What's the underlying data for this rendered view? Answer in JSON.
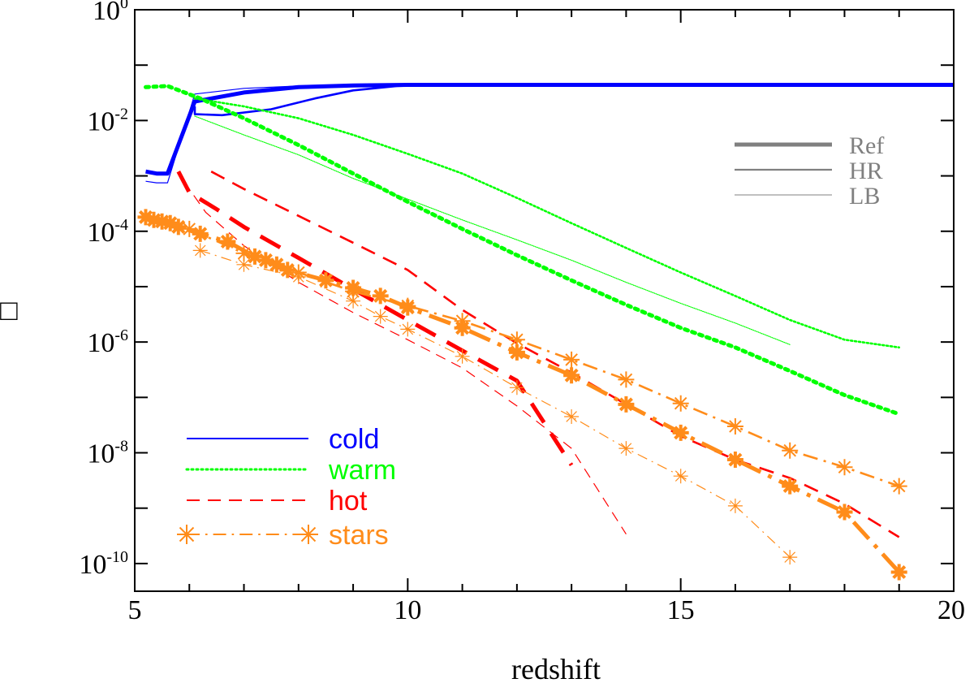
{
  "chart_data": {
    "type": "line",
    "xlabel": "redshift",
    "ylabel": "□",
    "xlim": [
      5,
      20
    ],
    "ylim_log10": [
      -10.5,
      0
    ],
    "y_scale": "log",
    "x_ticks": [
      5,
      10,
      15,
      20
    ],
    "y_ticks": [
      {
        "exp": 0,
        "label": "10",
        "sup": "0"
      },
      {
        "exp": -2,
        "label": "10",
        "sup": "-2"
      },
      {
        "exp": -4,
        "label": "10",
        "sup": "-4"
      },
      {
        "exp": -6,
        "label": "10",
        "sup": "-6"
      },
      {
        "exp": -8,
        "label": "10",
        "sup": "-8"
      },
      {
        "exp": -10,
        "label": "10",
        "sup": "-10"
      }
    ],
    "legend_components": [
      {
        "name": "cold",
        "color": "#0000ff",
        "dash": "none",
        "marker": false
      },
      {
        "name": "warm",
        "color": "#00ff00",
        "dash": "dotted",
        "marker": false
      },
      {
        "name": "hot",
        "color": "#ff0000",
        "dash": "dashed",
        "marker": false
      },
      {
        "name": "stars",
        "color": "#ff8c1a",
        "dash": "dashdot",
        "marker": true
      }
    ],
    "legend_runs": [
      {
        "name": "Ref",
        "weight": "thick"
      },
      {
        "name": "HR",
        "weight": "medium"
      },
      {
        "name": "LB",
        "weight": "thin"
      }
    ],
    "series": [
      {
        "name": "cold Ref",
        "component": "cold",
        "run": "Ref",
        "color": "#0000ff",
        "dash": "none",
        "weight": "thick",
        "marker": false,
        "points": [
          [
            5.2,
            0.0012
          ],
          [
            5.4,
            0.0011
          ],
          [
            5.6,
            0.0011
          ],
          [
            6.1,
            0.022
          ],
          [
            7,
            0.032
          ],
          [
            8,
            0.04
          ],
          [
            9,
            0.043
          ],
          [
            10,
            0.044
          ],
          [
            20,
            0.044
          ]
        ]
      },
      {
        "name": "cold HR",
        "component": "cold",
        "run": "HR",
        "color": "#0000ff",
        "dash": "none",
        "weight": "medium",
        "marker": false,
        "points": [
          [
            6.1,
            0.018
          ],
          [
            6.1,
            0.013
          ],
          [
            6.6,
            0.0125
          ],
          [
            7.5,
            0.016
          ],
          [
            8.3,
            0.025
          ],
          [
            9,
            0.035
          ],
          [
            9.8,
            0.042
          ],
          [
            10.5,
            0.044
          ],
          [
            11,
            0.044
          ]
        ]
      },
      {
        "name": "cold LB",
        "component": "cold",
        "run": "LB",
        "color": "#0000ff",
        "dash": "none",
        "weight": "thin",
        "marker": false,
        "points": [
          [
            5.2,
            0.0008
          ],
          [
            5.4,
            0.00075
          ],
          [
            5.6,
            0.00075
          ],
          [
            6.1,
            0.03
          ],
          [
            7,
            0.038
          ],
          [
            8,
            0.042
          ],
          [
            9,
            0.044
          ],
          [
            10,
            0.044
          ]
        ]
      },
      {
        "name": "warm Ref",
        "component": "warm",
        "run": "Ref",
        "color": "#00ff00",
        "dash": "dotted",
        "weight": "thick",
        "marker": false,
        "points": [
          [
            5.2,
            0.04
          ],
          [
            5.6,
            0.042
          ],
          [
            6.2,
            0.025
          ],
          [
            7,
            0.011
          ],
          [
            8,
            0.0036
          ],
          [
            9,
            0.0011
          ],
          [
            10,
            0.00034
          ],
          [
            11,
            0.00011
          ],
          [
            12,
            3.7e-05
          ],
          [
            13,
            1.3e-05
          ],
          [
            14,
            4.7e-06
          ],
          [
            15,
            1.8e-06
          ],
          [
            16,
            8e-07
          ],
          [
            17,
            3e-07
          ],
          [
            18,
            1.1e-07
          ],
          [
            19,
            5e-08
          ]
        ]
      },
      {
        "name": "warm HR",
        "component": "warm",
        "run": "HR",
        "color": "#00ff00",
        "dash": "dotted",
        "weight": "medium",
        "marker": false,
        "points": [
          [
            6.1,
            0.025
          ],
          [
            7,
            0.018
          ],
          [
            8,
            0.011
          ],
          [
            9,
            0.0055
          ],
          [
            10,
            0.0025
          ],
          [
            11,
            0.0011
          ],
          [
            12,
            0.0004
          ],
          [
            13,
            0.00014
          ],
          [
            14,
            5e-05
          ],
          [
            15,
            1.8e-05
          ],
          [
            16,
            6.8e-06
          ],
          [
            17,
            2.5e-06
          ],
          [
            18,
            1.1e-06
          ],
          [
            19,
            8e-07
          ]
        ]
      },
      {
        "name": "warm LB",
        "component": "warm",
        "run": "LB",
        "color": "#00ff00",
        "dash": "dotted",
        "weight": "thin",
        "marker": false,
        "points": [
          [
            6.1,
            0.012
          ],
          [
            7,
            0.0055
          ],
          [
            8,
            0.0024
          ],
          [
            9,
            0.0009
          ],
          [
            10,
            0.00038
          ],
          [
            11,
            0.00016
          ],
          [
            12,
            7e-05
          ],
          [
            13,
            3e-05
          ],
          [
            14,
            1.2e-05
          ],
          [
            15,
            5e-06
          ],
          [
            16,
            2.2e-06
          ],
          [
            17,
            9e-07
          ]
        ]
      },
      {
        "name": "hot Ref",
        "component": "hot",
        "run": "Ref",
        "color": "#ff0000",
        "dash": "dashed",
        "weight": "thick",
        "marker": false,
        "points": [
          [
            5.8,
            0.0012
          ],
          [
            6,
            0.0005
          ],
          [
            6.5,
            0.00025
          ],
          [
            7,
            0.00012
          ],
          [
            8,
            3.3e-05
          ],
          [
            9,
            9e-06
          ],
          [
            10,
            2.5e-06
          ],
          [
            11,
            7e-07
          ],
          [
            12,
            2e-07
          ],
          [
            13,
            6e-09
          ]
        ]
      },
      {
        "name": "hot HR",
        "component": "hot",
        "run": "HR",
        "color": "#ff0000",
        "dash": "dashed",
        "weight": "medium",
        "marker": false,
        "points": [
          [
            6.4,
            0.0012
          ],
          [
            7,
            0.00058
          ],
          [
            8,
            0.00019
          ],
          [
            9,
            6.2e-05
          ],
          [
            10,
            2e-05
          ],
          [
            11,
            3.8e-06
          ],
          [
            12,
            9.5e-07
          ],
          [
            13,
            2.8e-07
          ],
          [
            14,
            7.5e-08
          ],
          [
            15,
            2e-08
          ],
          [
            16,
            7.5e-09
          ],
          [
            17,
            3.5e-09
          ],
          [
            18,
            1.2e-09
          ],
          [
            19,
            3e-10
          ]
        ]
      },
      {
        "name": "hot LB",
        "component": "hot",
        "run": "LB",
        "color": "#ff0000",
        "dash": "dashed",
        "weight": "thin",
        "marker": false,
        "points": [
          [
            5.9,
            0.0008
          ],
          [
            6.3,
            0.00022
          ],
          [
            7,
            5.5e-05
          ],
          [
            8,
            1.2e-05
          ],
          [
            9,
            3.4e-06
          ],
          [
            10,
            1.1e-06
          ],
          [
            11,
            3.4e-07
          ],
          [
            12,
            7e-08
          ],
          [
            13,
            1.2e-08
          ],
          [
            14,
            3.4e-10
          ]
        ]
      },
      {
        "name": "stars Ref",
        "component": "stars",
        "run": "Ref",
        "color": "#ff8c1a",
        "dash": "dashdot",
        "weight": "thick",
        "marker": true,
        "points": [
          [
            5.2,
            0.00018
          ],
          [
            5.35,
            0.00016
          ],
          [
            5.5,
            0.00015
          ],
          [
            5.65,
            0.00014
          ],
          [
            5.8,
            0.00012
          ],
          [
            6.2,
            9e-05
          ],
          [
            6.7,
            6.5e-05
          ],
          [
            7.2,
            3.5e-05
          ],
          [
            7.4,
            3e-05
          ],
          [
            7.6,
            2.5e-05
          ],
          [
            7.8,
            2e-05
          ],
          [
            8.5,
            1.3e-05
          ],
          [
            9,
            9.5e-06
          ],
          [
            9.5,
            6.8e-06
          ],
          [
            10,
            4.2e-06
          ],
          [
            11,
            1.8e-06
          ],
          [
            12,
            6.5e-07
          ],
          [
            13,
            2.5e-07
          ],
          [
            14,
            7.5e-08
          ],
          [
            15,
            2.3e-08
          ],
          [
            16,
            7.5e-09
          ],
          [
            17,
            2.5e-09
          ],
          [
            18,
            8.5e-10
          ],
          [
            19,
            7e-11
          ]
        ]
      },
      {
        "name": "stars HR",
        "component": "stars",
        "run": "HR",
        "color": "#ff8c1a",
        "dash": "dashdot",
        "weight": "medium",
        "marker": true,
        "points": [
          [
            6,
            0.00011
          ],
          [
            7,
            4e-05
          ],
          [
            8,
            1.8e-05
          ],
          [
            9,
            8.2e-06
          ],
          [
            10,
            4.5e-06
          ],
          [
            11,
            2.4e-06
          ],
          [
            12,
            1.1e-06
          ],
          [
            13,
            4.8e-07
          ],
          [
            14,
            2.1e-07
          ],
          [
            15,
            7.8e-08
          ],
          [
            16,
            3e-08
          ],
          [
            17,
            1.1e-08
          ],
          [
            18,
            5.5e-09
          ],
          [
            19,
            2.5e-09
          ]
        ]
      },
      {
        "name": "stars LB",
        "component": "stars",
        "run": "LB",
        "color": "#ff8c1a",
        "dash": "dashdot",
        "weight": "thin",
        "marker": true,
        "points": [
          [
            6.2,
            4.5e-05
          ],
          [
            7,
            2.5e-05
          ],
          [
            8,
            1.5e-05
          ],
          [
            9,
            5.5e-06
          ],
          [
            9.5,
            2.9e-06
          ],
          [
            10,
            1.7e-06
          ],
          [
            11,
            5.5e-07
          ],
          [
            12,
            1.5e-07
          ],
          [
            13,
            4.5e-08
          ],
          [
            14,
            1.2e-08
          ],
          [
            15,
            3.8e-09
          ],
          [
            16,
            1.1e-09
          ],
          [
            17,
            1.3e-10
          ]
        ]
      }
    ]
  }
}
